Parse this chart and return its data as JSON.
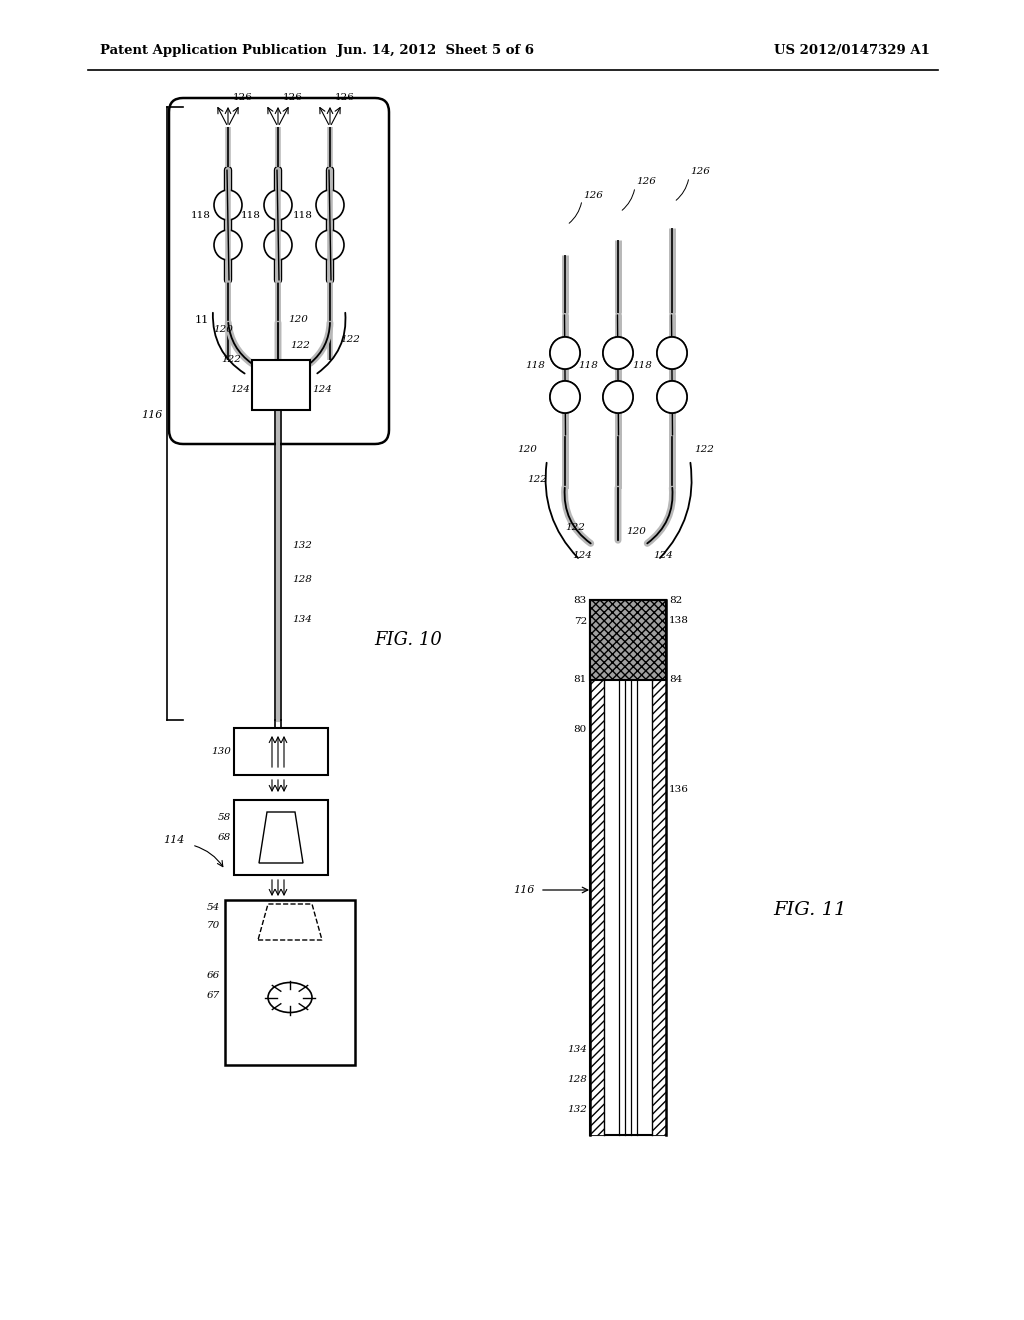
{
  "bg_color": "#ffffff",
  "header_left": "Patent Application Publication",
  "header_center": "Jun. 14, 2012  Sheet 5 of 6",
  "header_right": "US 2012/0147329 A1",
  "fig10_label": "FIG. 10",
  "fig11_label": "FIG. 11",
  "line_color": "#000000",
  "gray_fill": "#b8b8b8",
  "light_gray": "#d0d0d0"
}
